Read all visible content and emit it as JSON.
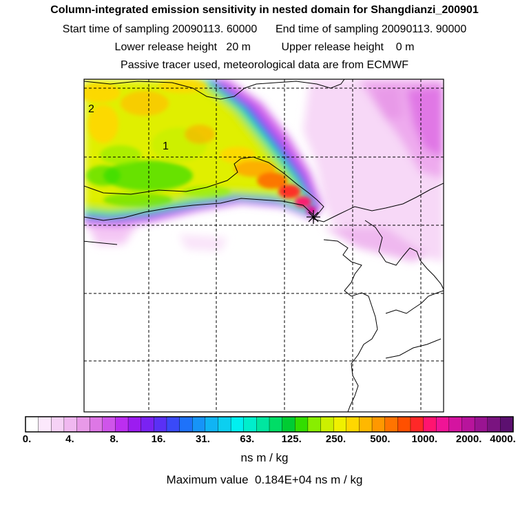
{
  "header": {
    "title": "Column-integrated emission sensitivity in nested domain for Shangdianzi_200901",
    "sampling_line": "Start time of sampling 20090113. 60000      End time of sampling 20090113. 90000",
    "release_line": "Lower release height   20 m          Upper release height    0 m",
    "tracer_line": "Passive tracer used, meteorological data are from ECMWF"
  },
  "map": {
    "labels": [
      "2",
      "1"
    ],
    "station_marker": "asterisk-station-marker"
  },
  "colorbar": {
    "ticks": [
      "0.",
      "4.",
      "8.",
      "16.",
      "31.",
      "63.",
      "125.",
      "250.",
      "500.",
      "1000.",
      "2000.",
      "4000."
    ],
    "units": "ns m / kg",
    "colors": [
      "#ffffff",
      "#fce8fc",
      "#f6d2f6",
      "#f0b8f0",
      "#e89ae8",
      "#dd77e5",
      "#cf55ea",
      "#bc2ef0",
      "#9c1cf0",
      "#7a22f2",
      "#5a30f5",
      "#3a4af8",
      "#1e72fa",
      "#1694f8",
      "#10b4f4",
      "#0ccff0",
      "#00f0f0",
      "#00eecc",
      "#00e6a0",
      "#00dd66",
      "#00cc33",
      "#33dd00",
      "#88ee00",
      "#ccf000",
      "#f0f000",
      "#ffd700",
      "#ffb800",
      "#ff9800",
      "#ff7400",
      "#ff5000",
      "#ff2828",
      "#ff1470",
      "#f01496",
      "#d414a0",
      "#b8149c",
      "#9a1492",
      "#7a1480",
      "#5c1070"
    ]
  },
  "footer": {
    "max_value": "Maximum value  0.184E+04 ns m / kg"
  }
}
